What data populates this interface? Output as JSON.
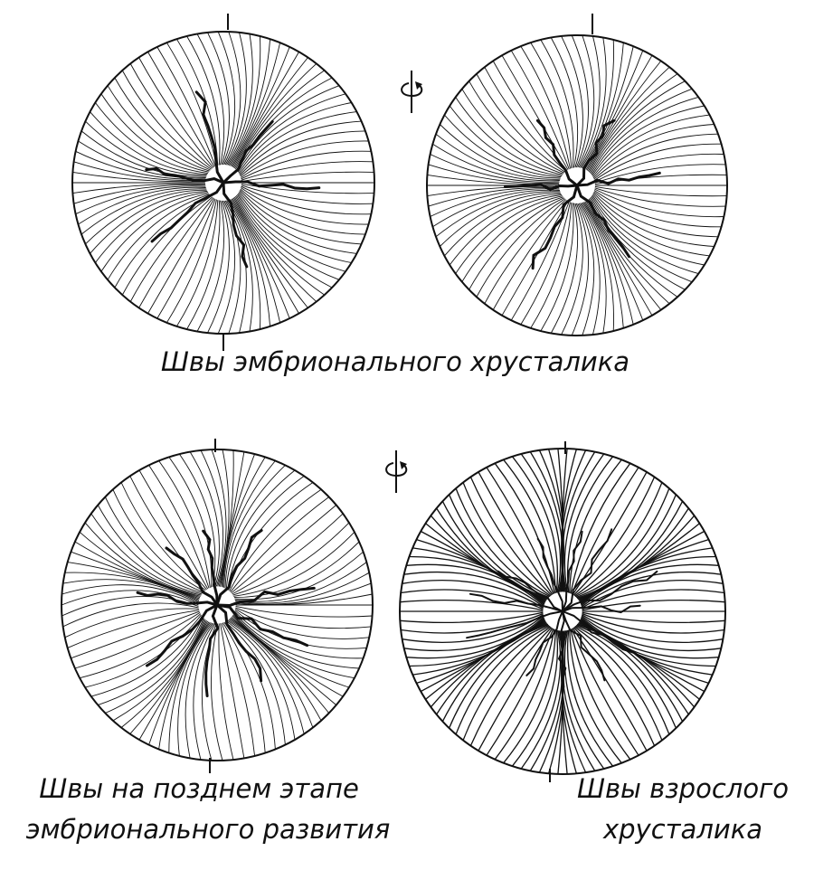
{
  "captions": {
    "embryonic": "Швы эмбрионального хрусталика",
    "late_embryonic_line1": "Швы на позднем этапе",
    "late_embryonic_line2": "эмбрионального развития",
    "adult_line1": "Швы взрослого",
    "adult_line2": "хрусталика"
  },
  "diagrams": [
    {
      "name": "embryonic-lens-front",
      "suture_arms": 6
    },
    {
      "name": "embryonic-lens-back",
      "suture_arms": 6
    },
    {
      "name": "late-embryonic-lens",
      "suture_arms": 9
    },
    {
      "name": "adult-lens",
      "suture_arms": 12
    }
  ],
  "icons": [
    "rotation-arrow-icon",
    "rotation-arrow-icon"
  ],
  "colors": {
    "ink": "#111111",
    "background": "#ffffff"
  }
}
